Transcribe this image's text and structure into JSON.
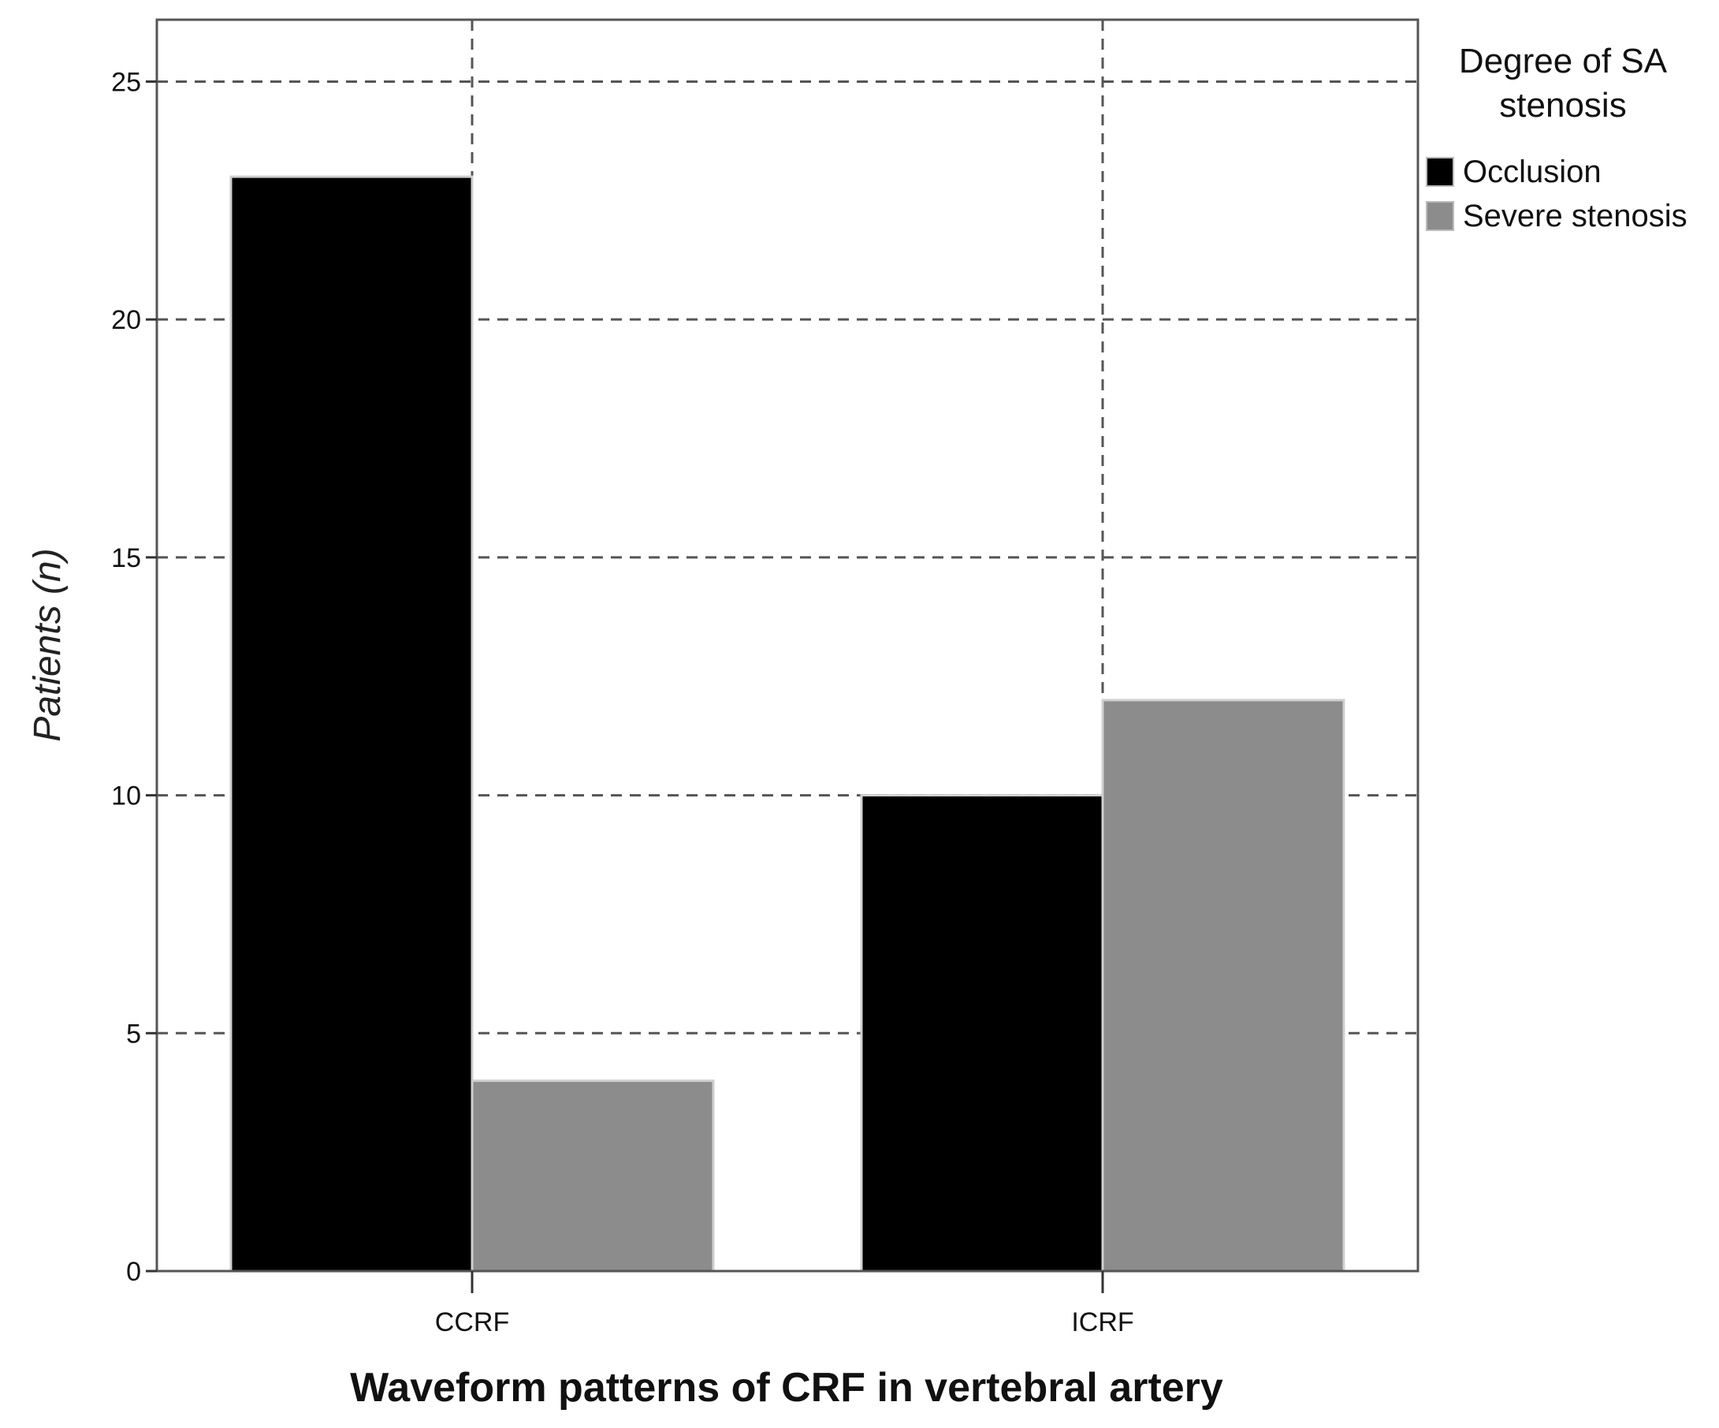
{
  "chart_data": {
    "type": "bar",
    "title": "",
    "xlabel": "Waveform patterns of CRF in vertebral artery",
    "ylabel": "Patients",
    "ylabel_unit": "n",
    "ylabel_open": "(",
    "ylabel_close": ")",
    "categories": [
      "CCRF",
      "ICRF"
    ],
    "series": [
      {
        "name": "Occlusion",
        "values": [
          23,
          10
        ],
        "color": "#000000"
      },
      {
        "name": "Severe stenosis",
        "values": [
          4,
          12
        ],
        "color": "#8c8c8c"
      }
    ],
    "ylim": [
      0,
      26.3
    ],
    "yticks": [
      0,
      5,
      10,
      15,
      20,
      25
    ],
    "grid": true,
    "legend": {
      "title_line1": "Degree of SA",
      "title_line2": "stenosis",
      "placement": "right"
    }
  }
}
